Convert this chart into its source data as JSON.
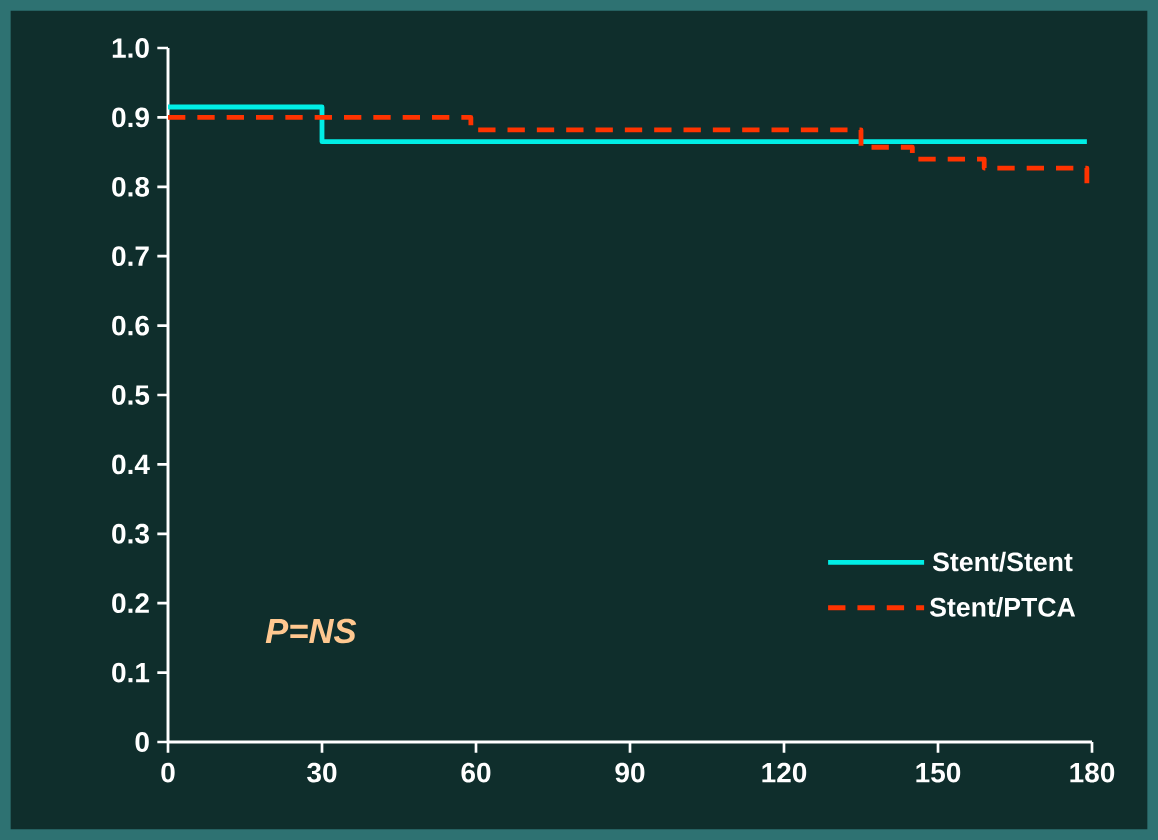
{
  "chart_data": {
    "type": "step",
    "xlim": [
      0,
      180
    ],
    "ylim": [
      0,
      1
    ],
    "xticks": [
      0,
      30,
      60,
      90,
      120,
      150,
      180
    ],
    "yticks": [
      0,
      0.1,
      0.2,
      0.3,
      0.4,
      0.5,
      0.6,
      0.7,
      0.8,
      0.9,
      {
        "value": 1,
        "label": "1.0"
      }
    ],
    "series": [
      {
        "name": "Stent/Stent",
        "color": "#00eee6",
        "line_style": "solid",
        "x": [
          0,
          30,
          179
        ],
        "values": [
          0.915,
          0.865,
          0.865
        ]
      },
      {
        "name": "Stent/PTCA",
        "color": "#ff3300",
        "line_style": "dashed",
        "x": [
          0,
          59,
          135,
          145,
          159,
          179
        ],
        "values": [
          0.9,
          0.882,
          0.857,
          0.84,
          0.827,
          0.805
        ]
      }
    ],
    "legend": "bottom right",
    "marker": "none",
    "grid": false,
    "annotations": [
      "*P=NS*"
    ]
  }
}
